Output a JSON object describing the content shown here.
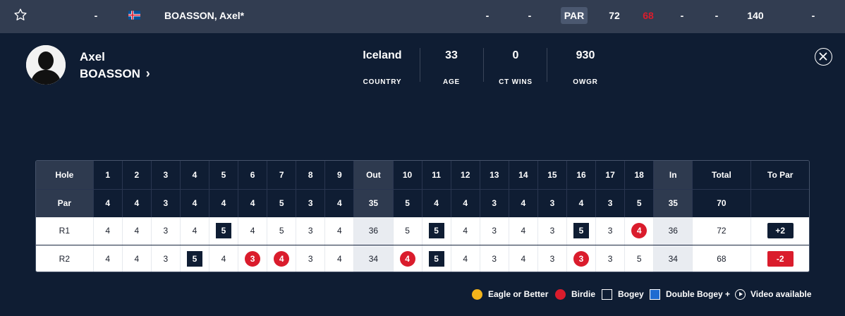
{
  "leaderboard_row": {
    "pos": "-",
    "player": "BOASSON, Axel*",
    "col_a": "-",
    "col_b": "-",
    "par_label": "PAR",
    "r1": "72",
    "r2": "68",
    "r3": "-",
    "r4": "-",
    "total": "140",
    "end": "-",
    "colors": {
      "r2": "#da1c2c"
    }
  },
  "player": {
    "first_name": "Axel",
    "last_name": "BOASSON",
    "chevron": "›",
    "stats": [
      {
        "value": "Iceland",
        "label": "COUNTRY"
      },
      {
        "value": "33",
        "label": "AGE"
      },
      {
        "value": "0",
        "label": "CT WINS"
      },
      {
        "value": "930",
        "label": "OWGR"
      }
    ]
  },
  "scorecard": {
    "hole_label": "Hole",
    "par_label": "Par",
    "out_label": "Out",
    "in_label": "In",
    "total_label": "Total",
    "topar_label": "To Par",
    "front_holes": [
      "1",
      "2",
      "3",
      "4",
      "5",
      "6",
      "7",
      "8",
      "9"
    ],
    "back_holes": [
      "10",
      "11",
      "12",
      "13",
      "14",
      "15",
      "16",
      "17",
      "18"
    ],
    "par_front": [
      "4",
      "4",
      "3",
      "4",
      "4",
      "4",
      "5",
      "3",
      "4"
    ],
    "par_out": "35",
    "par_back": [
      "5",
      "4",
      "4",
      "3",
      "4",
      "3",
      "4",
      "3",
      "5"
    ],
    "par_in": "35",
    "par_total": "70",
    "rounds": [
      {
        "label": "R1",
        "front": [
          "4",
          "4",
          "3",
          "4",
          "5",
          "4",
          "5",
          "3",
          "4"
        ],
        "front_marks": [
          "",
          "",
          "",
          "",
          "bogey",
          "",
          "",
          "",
          ""
        ],
        "out": "36",
        "back": [
          "5",
          "5",
          "4",
          "3",
          "4",
          "3",
          "5",
          "3",
          "4"
        ],
        "back_marks": [
          "",
          "bogey",
          "",
          "",
          "",
          "",
          "bogey",
          "",
          "birdie"
        ],
        "in": "36",
        "total": "72",
        "topar": "+2",
        "topar_type": "over"
      },
      {
        "label": "R2",
        "front": [
          "4",
          "4",
          "3",
          "5",
          "4",
          "3",
          "4",
          "3",
          "4"
        ],
        "front_marks": [
          "",
          "",
          "",
          "bogey",
          "",
          "birdie",
          "birdie",
          "",
          ""
        ],
        "out": "34",
        "back": [
          "4",
          "5",
          "4",
          "3",
          "4",
          "3",
          "3",
          "3",
          "5"
        ],
        "back_marks": [
          "birdie",
          "bogey",
          "",
          "",
          "",
          "",
          "birdie",
          "",
          ""
        ],
        "in": "34",
        "total": "68",
        "topar": "-2",
        "topar_type": "under"
      }
    ]
  },
  "legend": [
    {
      "key": "eagle",
      "label": "Eagle or Better",
      "color": "#f3b41b"
    },
    {
      "key": "birdie",
      "label": "Birdie",
      "color": "#da1c2c"
    },
    {
      "key": "bogey",
      "label": "Bogey",
      "color": "#ffffff"
    },
    {
      "key": "dbl",
      "label": "Double Bogey +",
      "color": "#1f6bd1"
    },
    {
      "key": "video",
      "label": "Video available",
      "icon": "play-circle-icon"
    }
  ]
}
